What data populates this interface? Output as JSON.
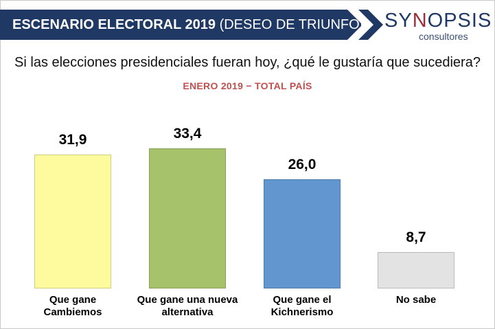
{
  "header": {
    "title_bold": "ESCENARIO ELECTORAL 2019",
    "title_rest": "(DESEO DE TRIUNFO)",
    "logo_sy": "SY",
    "logo_n": "N",
    "logo_rest": "OPSIS",
    "logo_sub": "consultores",
    "colors": {
      "banner": "#1f3864",
      "logo_accent": "#9b2d3a"
    }
  },
  "question": "Si las elecciones presidenciales fueran hoy, ¿qué le gustaría que sucediera?",
  "subtitle": "ENERO 2019 − TOTAL PAÍS",
  "chart_data": {
    "type": "bar",
    "title": "Si las elecciones presidenciales fueran hoy, ¿qué le gustaría que sucediera?",
    "subtitle": "ENERO 2019 − TOTAL PAÍS",
    "categories": [
      [
        "Que gane",
        "Cambiemos"
      ],
      [
        "Que gane una nueva",
        "alternativa"
      ],
      [
        "Que gane el",
        "Kichnerismo"
      ],
      [
        "No sabe",
        ""
      ]
    ],
    "values": [
      31.9,
      33.4,
      26.0,
      8.7
    ],
    "value_labels": [
      "31,9",
      "33,4",
      "26,0",
      "8,7"
    ],
    "colors": [
      "#fefa9e",
      "#a6c36b",
      "#6197ce",
      "#e3e3e3"
    ],
    "ylim": [
      0,
      35
    ],
    "xlabel": "",
    "ylabel": "",
    "grid": false,
    "legend": "none"
  }
}
